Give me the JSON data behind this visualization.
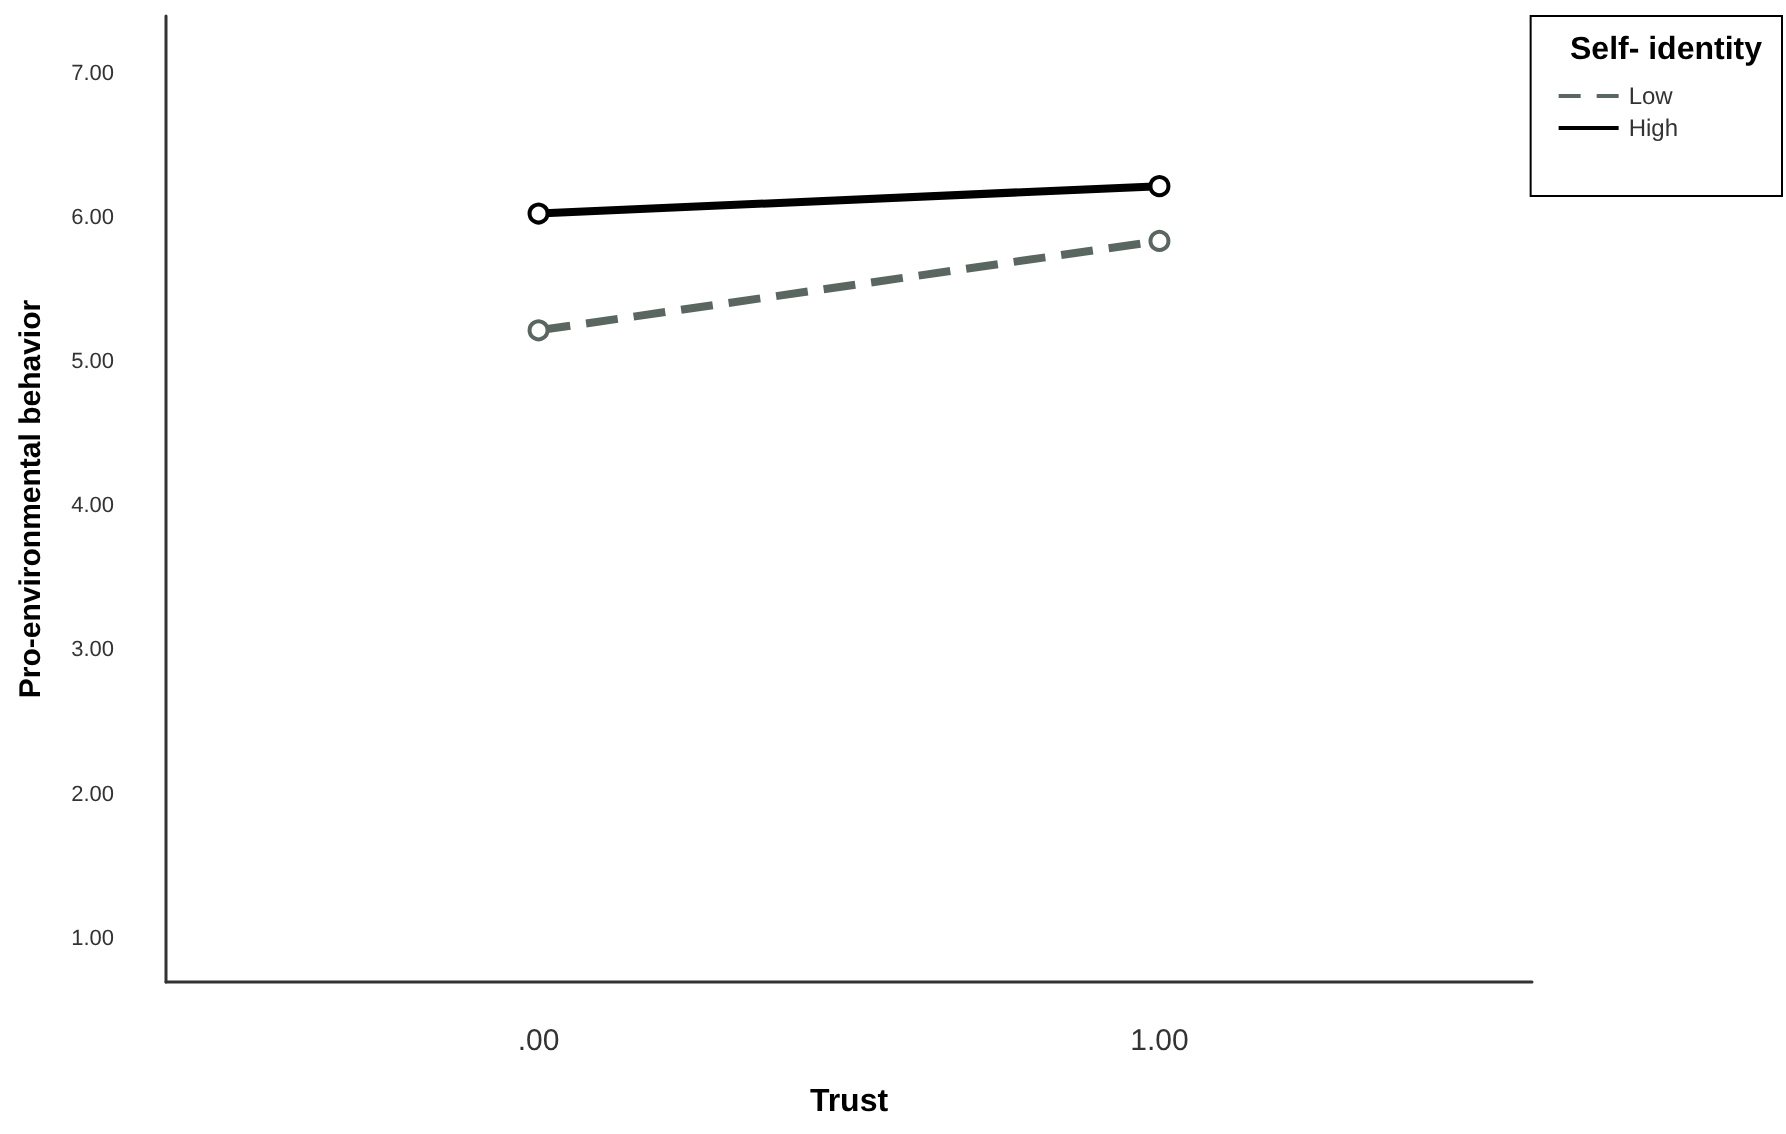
{
  "chart_data": {
    "type": "line",
    "xlabel": "Trust",
    "ylabel": "Pro-environmental behavior",
    "legend_title": "Self- identity",
    "x": [
      0,
      1
    ],
    "series": [
      {
        "name": "Low",
        "color": "#5a6660",
        "values": [
          5.22,
          5.84
        ],
        "line_style": "dashed"
      },
      {
        "name": "High",
        "color": "#000000",
        "values": [
          6.03,
          6.22
        ],
        "line_style": "solid"
      }
    ],
    "xlim": [
      -0.6,
      1.6
    ],
    "xticks": [
      {
        "value": 0,
        "label": ".00"
      },
      {
        "value": 1,
        "label": "1.00"
      }
    ],
    "ylim": [
      0.7,
      7.4
    ],
    "yticks": [
      {
        "value": 1,
        "label": "1.00"
      },
      {
        "value": 2,
        "label": "2.00"
      },
      {
        "value": 3,
        "label": "3.00"
      },
      {
        "value": 4,
        "label": "4.00"
      },
      {
        "value": 5,
        "label": "5.00"
      },
      {
        "value": 6,
        "label": "6.00"
      },
      {
        "value": 7,
        "label": "7.00"
      }
    ],
    "grid": false,
    "legend": "top right",
    "marker": "circle"
  }
}
